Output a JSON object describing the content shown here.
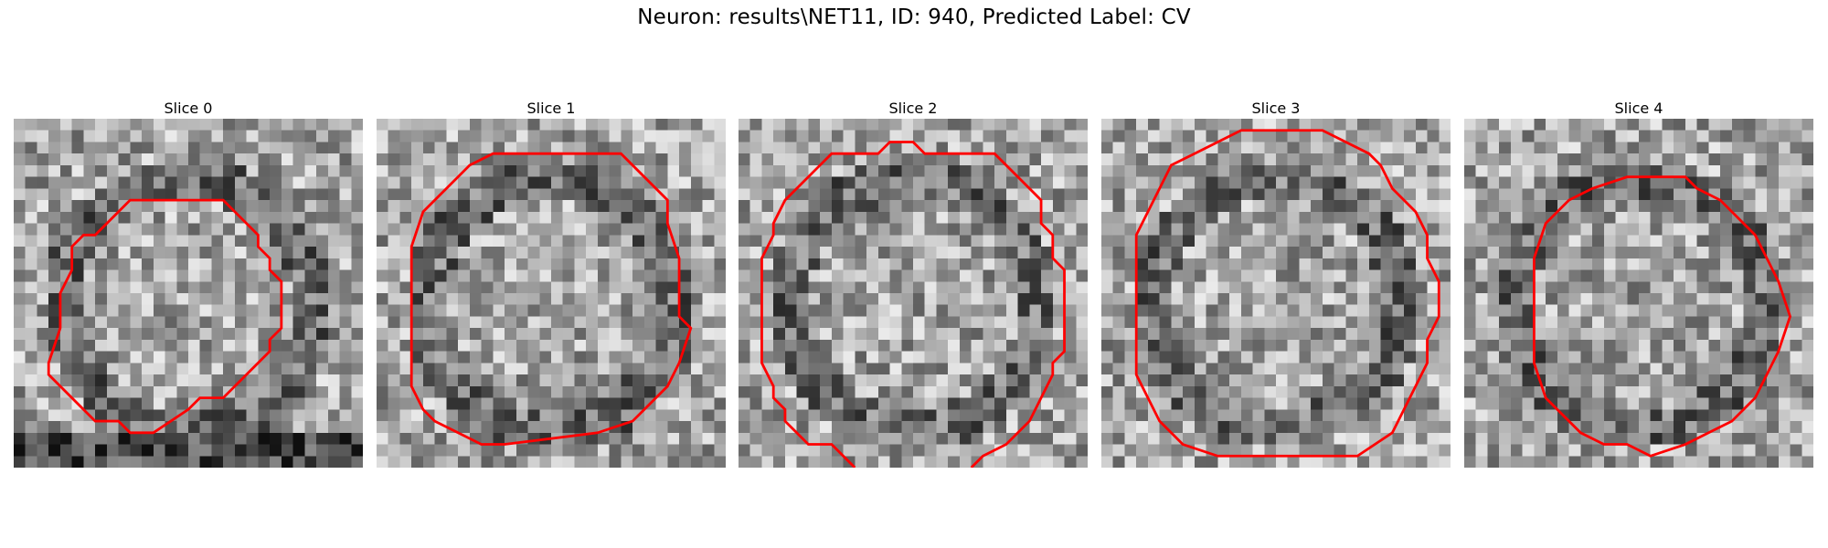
{
  "figure": {
    "title": "Neuron: results\\NET11, ID: 940, Predicted Label: CV"
  },
  "colors": {
    "contour": "#ff0000",
    "background": "#ffffff"
  },
  "panels": [
    {
      "label": "Slice 0"
    },
    {
      "label": "Slice 1"
    },
    {
      "label": "Slice 2"
    },
    {
      "label": "Slice 3"
    },
    {
      "label": "Slice 4"
    }
  ]
}
